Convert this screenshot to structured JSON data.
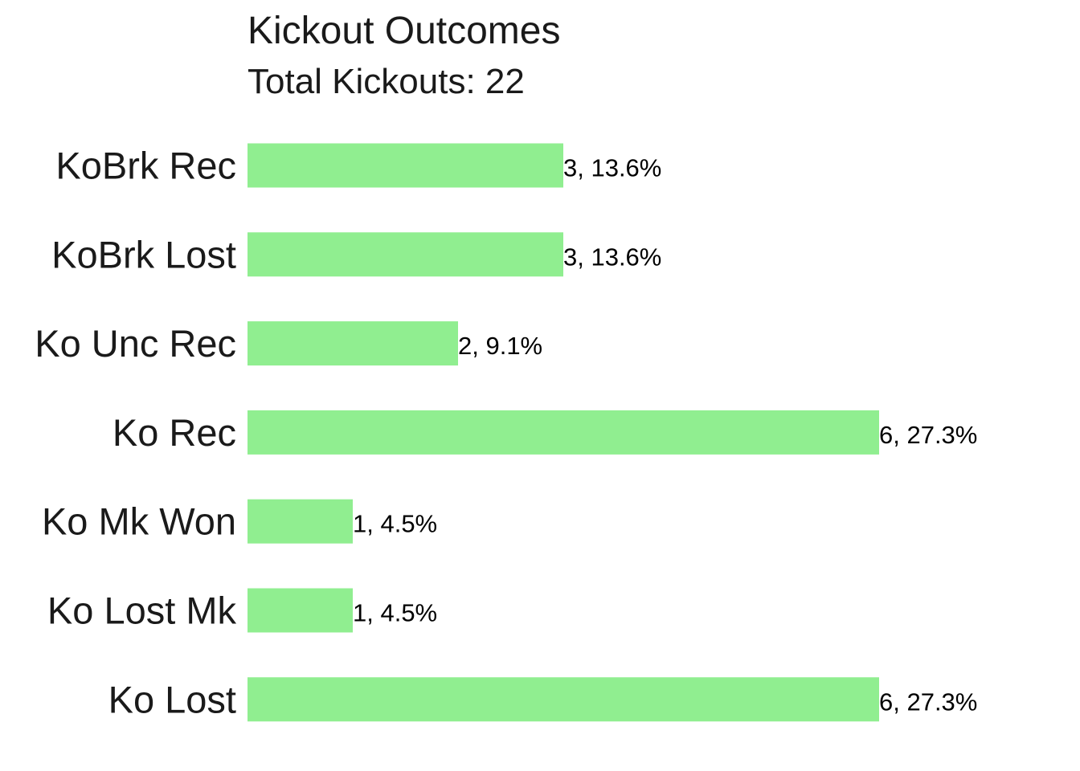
{
  "chart_data": {
    "type": "bar",
    "orientation": "horizontal",
    "title": "Kickout Outcomes",
    "subtitle": "Total Kickouts: 22",
    "categories": [
      "KoBrk Rec",
      "KoBrk Lost",
      "Ko Unc Rec",
      "Ko Rec",
      "Ko Mk Won",
      "Ko Lost Mk",
      "Ko Lost"
    ],
    "values": [
      3,
      3,
      2,
      6,
      1,
      1,
      6
    ],
    "data_labels": [
      "3, 13.6%",
      "3, 13.6%",
      "2, 9.1%",
      "6, 27.3%",
      "1, 4.5%",
      "1, 4.5%",
      "6, 27.3%"
    ],
    "bar_color": "#90EE90",
    "grid": false,
    "legend": "none"
  }
}
